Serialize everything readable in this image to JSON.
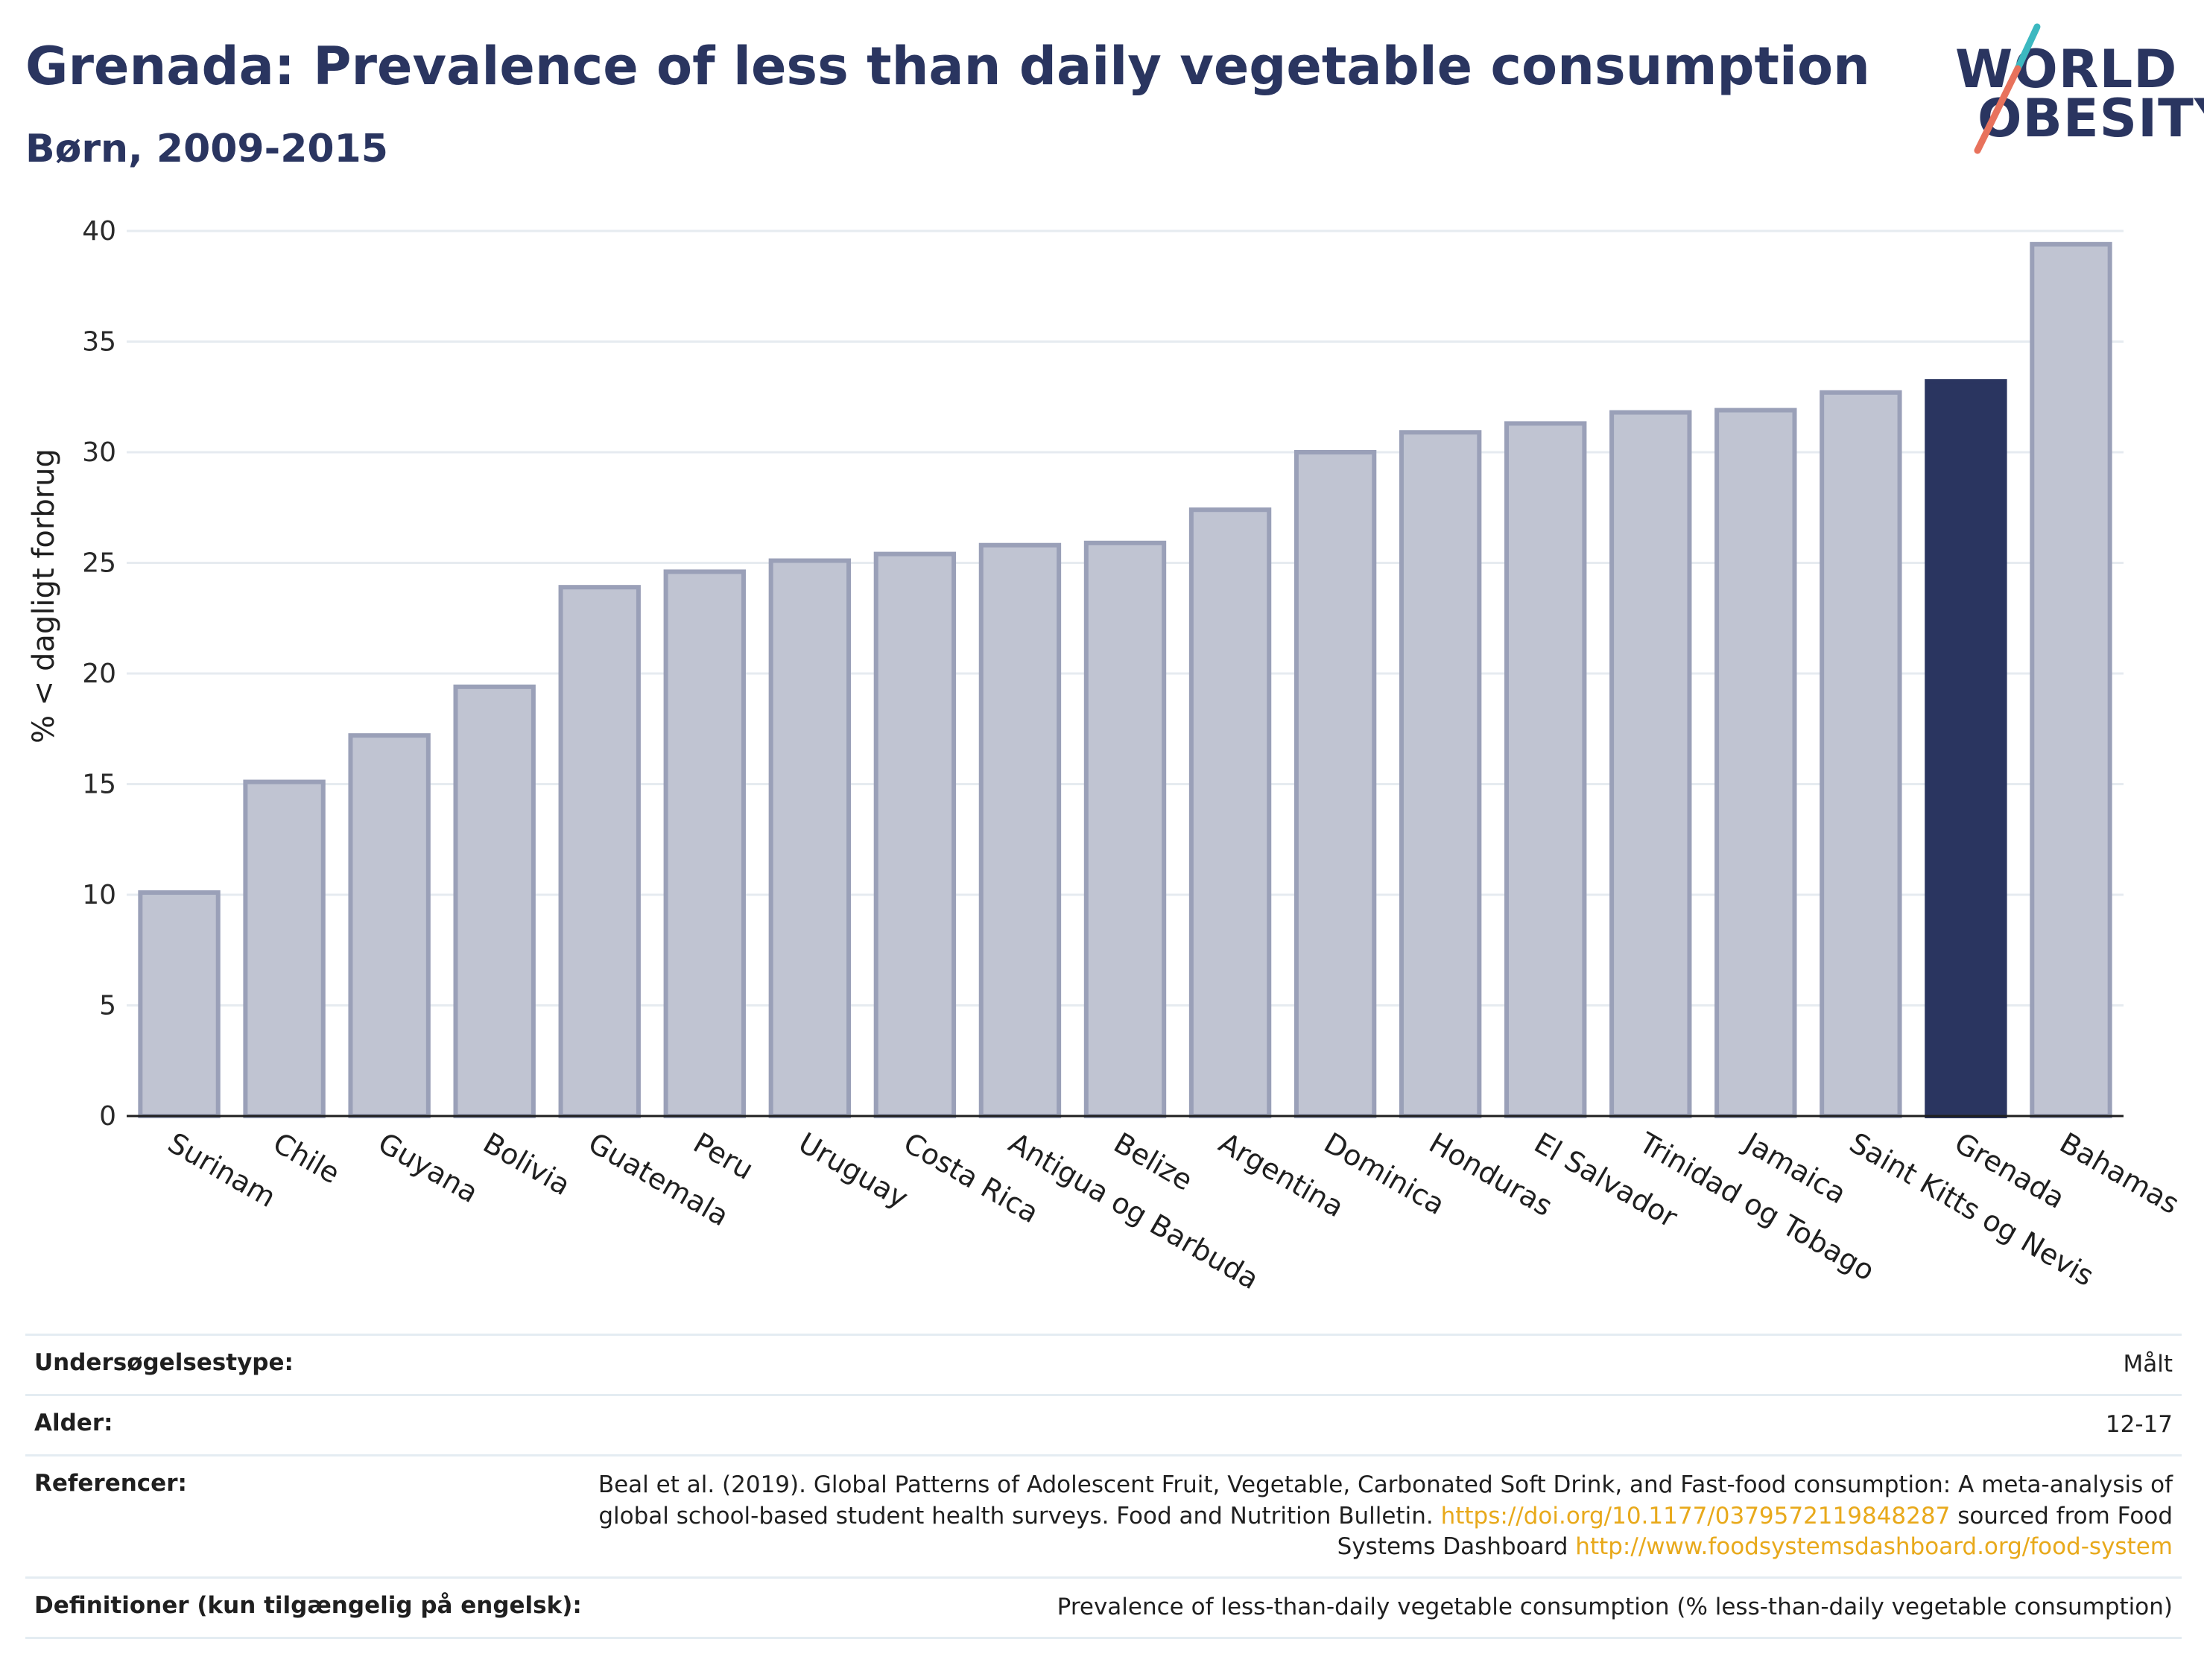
{
  "header": {
    "title": "Grenada: Prevalence of less than daily vegetable consumption",
    "subtitle": "Børn, 2009-2015"
  },
  "logo": {
    "line1": "WORLD",
    "line2": "OBESITY",
    "colors": {
      "text": "#2a3560",
      "slash_top": "#3cb8c0",
      "slash_bottom": "#e8725c"
    }
  },
  "chart_data": {
    "type": "bar",
    "ylabel": "% < dagligt forbrug",
    "xlabel": "",
    "ylim": [
      0,
      40
    ],
    "yticks": [
      0,
      5,
      10,
      15,
      20,
      25,
      30,
      35,
      40
    ],
    "grid": true,
    "categories": [
      "Surinam",
      "Chile",
      "Guyana",
      "Bolivia",
      "Guatemala",
      "Peru",
      "Uruguay",
      "Costa Rica",
      "Antigua og Barbuda",
      "Belize",
      "Argentina",
      "Dominica",
      "Honduras",
      "El Salvador",
      "Trinidad og Tobago",
      "Jamaica",
      "Saint Kitts og Nevis",
      "Grenada",
      "Bahamas"
    ],
    "values": [
      10.1,
      15.1,
      17.2,
      19.4,
      23.9,
      24.6,
      25.1,
      25.4,
      25.8,
      25.9,
      27.4,
      30.0,
      30.9,
      31.3,
      31.8,
      31.9,
      32.7,
      33.2,
      39.4
    ],
    "highlight": "Grenada",
    "colors": {
      "bar": "#c0c4d2",
      "bar_border": "#9aa0b8",
      "highlight": "#2a3560"
    }
  },
  "info": {
    "survey_type_label": "Undersøgelsestype:",
    "survey_type_value": "Målt",
    "age_label": "Alder:",
    "age_value": "12-17",
    "references_label": "Referencer:",
    "references_text1": "Beal et al. (2019). Global Patterns of Adolescent Fruit, Vegetable, Carbonated Soft Drink, and Fast-food consumption: A meta-analysis of global school-based student health surveys. Food and Nutrition Bulletin.",
    "references_link1": "https://doi.org/10.1177/0379572119848287",
    "references_text2": "sourced from Food Systems Dashboard",
    "references_link2": "http://www.foodsystemsdashboard.org/food-system",
    "definitions_label": "Definitioner (kun tilgængelig på engelsk):",
    "definitions_value": "Prevalence of less-than-daily vegetable consumption (% less-than-daily vegetable consumption)"
  }
}
